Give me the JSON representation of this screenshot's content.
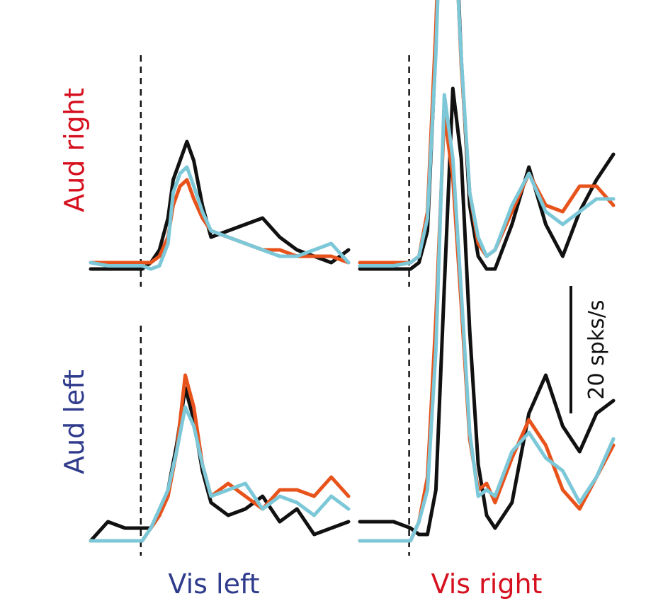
{
  "labels": {
    "aud_right": "Aud right",
    "aud_left": "Aud left",
    "vis_left": "Vis left",
    "vis_right": "Vis right",
    "scale_bar": "20 spks/s"
  },
  "colors": {
    "aud_right": "#d6101e",
    "aud_left": "#2f3b8c",
    "vis_left": "#2f3b8c",
    "vis_right": "#d6101e",
    "series": [
      "#111111",
      "#e8531c",
      "#7cc8d8"
    ]
  },
  "chart_data": {
    "type": "line",
    "scale_bar_value": 20,
    "series_count": 3,
    "panels": [
      {
        "row": "Aud right",
        "col": "Vis left",
        "series": [
          {
            "x": [
              -0.3,
              -0.2,
              -0.1,
              0,
              0.05,
              0.1,
              0.15,
              0.18,
              0.22,
              0.26,
              0.3,
              0.35,
              0.4,
              0.5,
              0.6,
              0.7,
              0.8,
              0.9,
              1.0,
              1.1,
              1.2
            ],
            "y": [
              0,
              0,
              0,
              0,
              1,
              3,
              8,
              14,
              17,
              20,
              17,
              10,
              5,
              6,
              7,
              8,
              5,
              3,
              2,
              1,
              3
            ]
          },
          {
            "x": [
              -0.3,
              -0.2,
              -0.1,
              0,
              0.05,
              0.1,
              0.15,
              0.18,
              0.22,
              0.26,
              0.3,
              0.35,
              0.4,
              0.5,
              0.6,
              0.7,
              0.8,
              0.9,
              1.0,
              1.1,
              1.2
            ],
            "y": [
              1,
              1,
              1,
              1,
              1,
              2,
              5,
              10,
              13,
              14,
              11,
              8,
              6,
              5,
              4,
              3,
              3,
              2,
              2,
              2,
              1
            ]
          },
          {
            "x": [
              -0.3,
              -0.2,
              -0.1,
              0,
              0.05,
              0.1,
              0.15,
              0.18,
              0.22,
              0.26,
              0.3,
              0.35,
              0.4,
              0.5,
              0.6,
              0.7,
              0.8,
              0.9,
              1.0,
              1.1,
              1.2
            ],
            "y": [
              1,
              0.5,
              0.5,
              0.5,
              0,
              0.5,
              4,
              12,
              15,
              16,
              13,
              9,
              6,
              5,
              4,
              3,
              2,
              2,
              3,
              4,
              1
            ]
          }
        ]
      },
      {
        "row": "Aud right",
        "col": "Vis right",
        "series": [
          {
            "x": [
              -0.3,
              -0.2,
              -0.1,
              0,
              0.05,
              0.1,
              0.15,
              0.2,
              0.25,
              0.3,
              0.35,
              0.4,
              0.45,
              0.5,
              0.6,
              0.7,
              0.8,
              0.9,
              1.0,
              1.1,
              1.2
            ],
            "y": [
              0,
              0,
              0,
              0,
              1,
              6,
              35,
              80,
              64,
              33,
              10,
              2,
              0,
              0,
              7,
              16,
              7,
              2,
              9,
              14,
              18
            ]
          },
          {
            "x": [
              -0.3,
              -0.2,
              -0.1,
              0,
              0.05,
              0.1,
              0.15,
              0.2,
              0.25,
              0.3,
              0.35,
              0.4,
              0.45,
              0.5,
              0.6,
              0.7,
              0.8,
              0.9,
              1.0,
              1.1,
              1.2
            ],
            "y": [
              1,
              1,
              1,
              1,
              2,
              9,
              38,
              77,
              62,
              32,
              12,
              4,
              2,
              3,
              9,
              15,
              10,
              9,
              13,
              13,
              10
            ]
          },
          {
            "x": [
              -0.3,
              -0.2,
              -0.1,
              0,
              0.05,
              0.1,
              0.15,
              0.2,
              0.25,
              0.3,
              0.35,
              0.4,
              0.45,
              0.5,
              0.6,
              0.7,
              0.8,
              0.9,
              1.0,
              1.1,
              1.2
            ],
            "y": [
              0.5,
              0.5,
              0.5,
              1,
              2,
              8,
              34,
              73,
              60,
              33,
              12,
              5,
              2,
              3,
              10,
              15,
              9,
              7,
              9,
              11,
              11
            ]
          }
        ]
      },
      {
        "row": "Aud left",
        "col": "Vis left",
        "series": [
          {
            "x": [
              -0.3,
              -0.2,
              -0.1,
              0,
              0.05,
              0.1,
              0.15,
              0.2,
              0.25,
              0.3,
              0.35,
              0.4,
              0.5,
              0.6,
              0.7,
              0.8,
              0.9,
              1.0,
              1.1,
              1.2
            ],
            "y": [
              0,
              3,
              2,
              2,
              2,
              4,
              8,
              15,
              24,
              19,
              11,
              6,
              4,
              5,
              7,
              3,
              5,
              1,
              2,
              3
            ]
          },
          {
            "x": [
              -0.3,
              -0.2,
              -0.1,
              0,
              0.05,
              0.1,
              0.15,
              0.2,
              0.25,
              0.3,
              0.35,
              0.4,
              0.5,
              0.6,
              0.7,
              0.8,
              0.9,
              1.0,
              1.1,
              1.2
            ],
            "y": [
              0,
              0,
              0,
              0,
              2,
              4,
              7,
              14,
              26,
              21,
              12,
              7,
              9,
              7,
              5,
              8,
              8,
              7,
              10,
              7
            ]
          },
          {
            "x": [
              -0.3,
              -0.2,
              -0.1,
              0,
              0.05,
              0.1,
              0.15,
              0.2,
              0.25,
              0.3,
              0.35,
              0.4,
              0.5,
              0.6,
              0.7,
              0.8,
              0.9,
              1.0,
              1.1,
              1.2
            ],
            "y": [
              0,
              0,
              0,
              0,
              2,
              5,
              8,
              14,
              21,
              18,
              12,
              7,
              8,
              9,
              5,
              7,
              6,
              4,
              7,
              5
            ]
          }
        ]
      },
      {
        "row": "Aud left",
        "col": "Vis right",
        "series": [
          {
            "x": [
              -0.3,
              -0.2,
              -0.1,
              0,
              0.05,
              0.1,
              0.15,
              0.2,
              0.25,
              0.3,
              0.35,
              0.4,
              0.45,
              0.5,
              0.6,
              0.7,
              0.8,
              0.9,
              1.0,
              1.1,
              1.2
            ],
            "y": [
              3,
              3,
              3,
              2,
              1,
              1,
              8,
              40,
              71,
              60,
              33,
              12,
              4,
              2,
              6,
              20,
              26,
              18,
              14,
              20,
              22
            ]
          },
          {
            "x": [
              -0.3,
              -0.2,
              -0.1,
              0,
              0.05,
              0.1,
              0.15,
              0.2,
              0.25,
              0.3,
              0.35,
              0.4,
              0.45,
              0.5,
              0.6,
              0.7,
              0.8,
              0.9,
              1.0,
              1.1,
              1.2
            ],
            "y": [
              0,
              0,
              0,
              0,
              3,
              10,
              35,
              67,
              57,
              37,
              16,
              8,
              9,
              6,
              13,
              19,
              15,
              8,
              5,
              10,
              15
            ]
          },
          {
            "x": [
              -0.3,
              -0.2,
              -0.1,
              0,
              0.05,
              0.1,
              0.15,
              0.2,
              0.25,
              0.3,
              0.35,
              0.4,
              0.45,
              0.5,
              0.6,
              0.7,
              0.8,
              0.9,
              1.0,
              1.1,
              1.2
            ],
            "y": [
              0,
              0,
              0,
              0,
              3,
              8,
              30,
              70,
              60,
              39,
              17,
              7,
              8,
              7,
              14,
              17,
              13,
              11,
              6,
              10,
              16
            ]
          }
        ]
      }
    ]
  }
}
